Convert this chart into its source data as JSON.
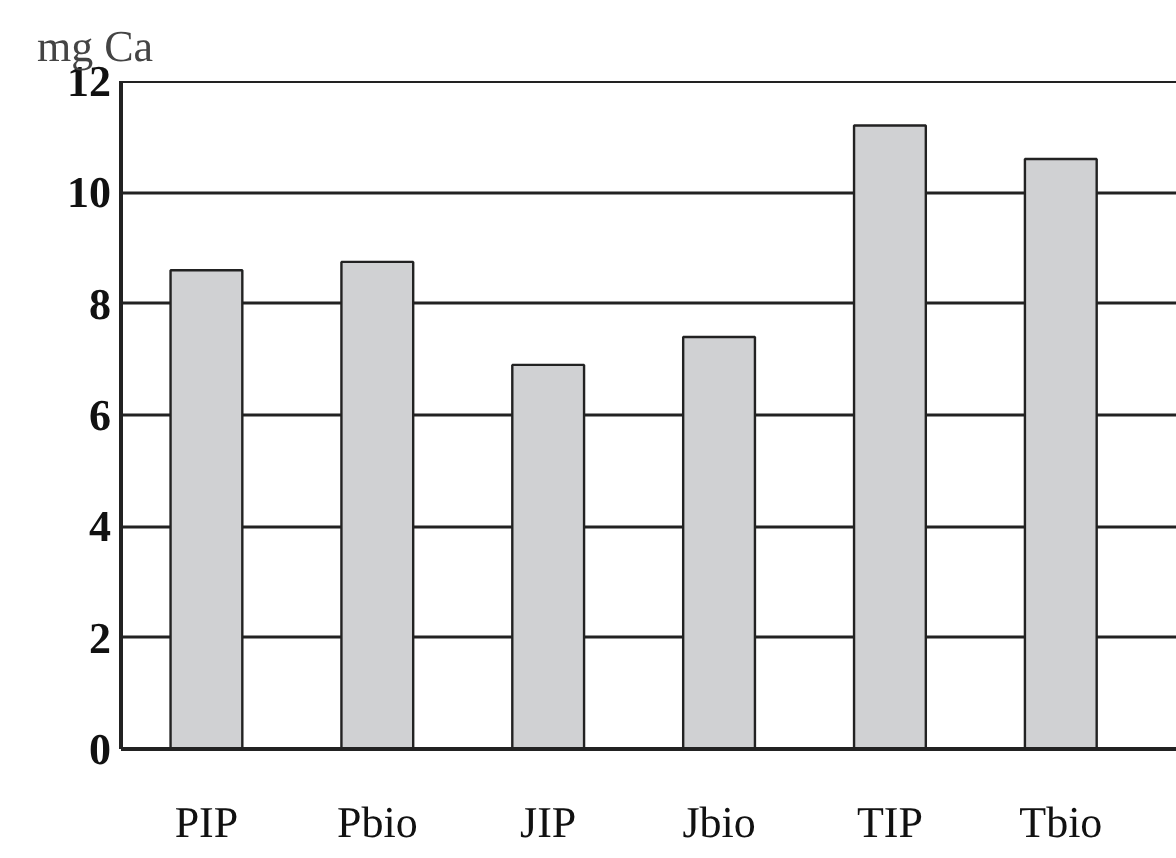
{
  "chart_data": {
    "type": "bar",
    "ylabel": "mg Ca",
    "categories": [
      "PIP",
      "Pbio",
      "JIP",
      "Jbio",
      "TIP",
      "Tbio"
    ],
    "values": [
      8.6,
      8.75,
      6.9,
      7.4,
      11.2,
      10.6
    ],
    "color": "#d0d1d3",
    "ylim": [
      0,
      12
    ],
    "yticks": [
      0,
      2,
      4,
      6,
      8,
      10,
      12
    ],
    "grid": "y"
  }
}
